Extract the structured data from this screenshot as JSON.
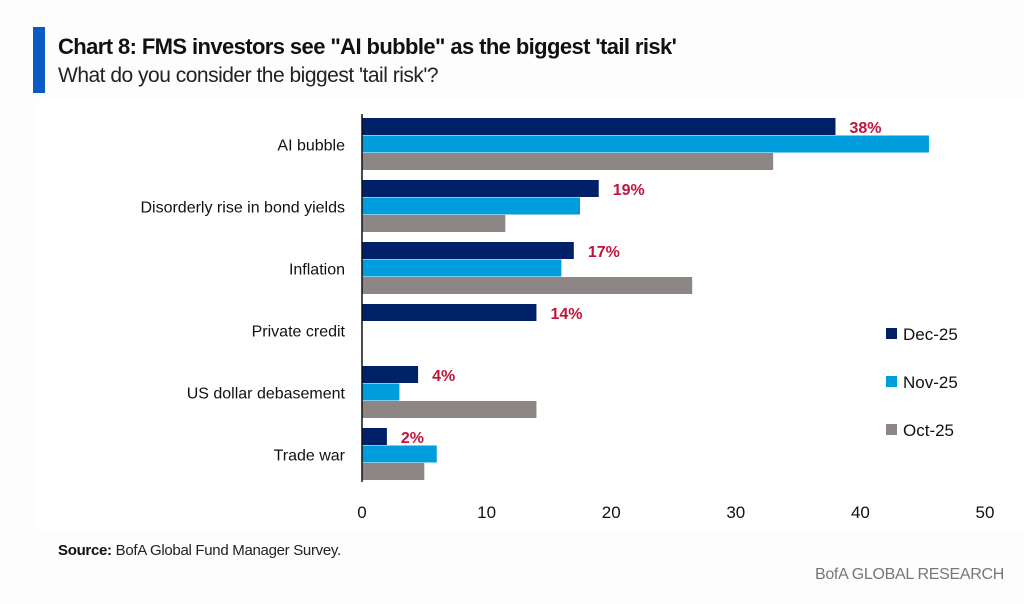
{
  "header": {
    "title": "Chart 8: FMS investors see \"AI bubble\" as the biggest 'tail risk'",
    "subtitle": "What do you consider the biggest 'tail risk'?",
    "accent_color": "#0a5bc4"
  },
  "footer": {
    "source_label": "Source:",
    "source_text": " BofA Global Fund Manager Survey.",
    "brand": "BofA GLOBAL RESEARCH"
  },
  "chart_data": {
    "type": "bar",
    "orientation": "horizontal",
    "title": "Chart 8: FMS investors see \"AI bubble\" as the biggest 'tail risk'",
    "subtitle": "What do you consider the biggest 'tail risk'?",
    "xlabel": "",
    "ylabel": "",
    "xlim": [
      0,
      50
    ],
    "x_ticks": [
      0,
      10,
      20,
      30,
      40,
      50
    ],
    "grid": false,
    "legend_position": "right",
    "categories": [
      "AI bubble",
      "Disorderly rise in bond yields",
      "Inflation",
      "Private credit",
      "US dollar debasement",
      "Trade war"
    ],
    "series": [
      {
        "name": "Dec-25",
        "color": "#002068",
        "values": [
          38,
          19,
          17,
          14,
          4.5,
          2
        ]
      },
      {
        "name": "Nov-25",
        "color": "#009ddc",
        "values": [
          45.5,
          17.5,
          16,
          null,
          3,
          6
        ]
      },
      {
        "name": "Oct-25",
        "color": "#8e8585",
        "values": [
          33,
          11.5,
          26.5,
          null,
          14,
          5
        ]
      }
    ],
    "data_labels": {
      "series": "Dec-25",
      "color": "#c0143c",
      "labels": [
        "38%",
        "19%",
        "17%",
        "14%",
        "4%",
        "2%"
      ]
    }
  }
}
